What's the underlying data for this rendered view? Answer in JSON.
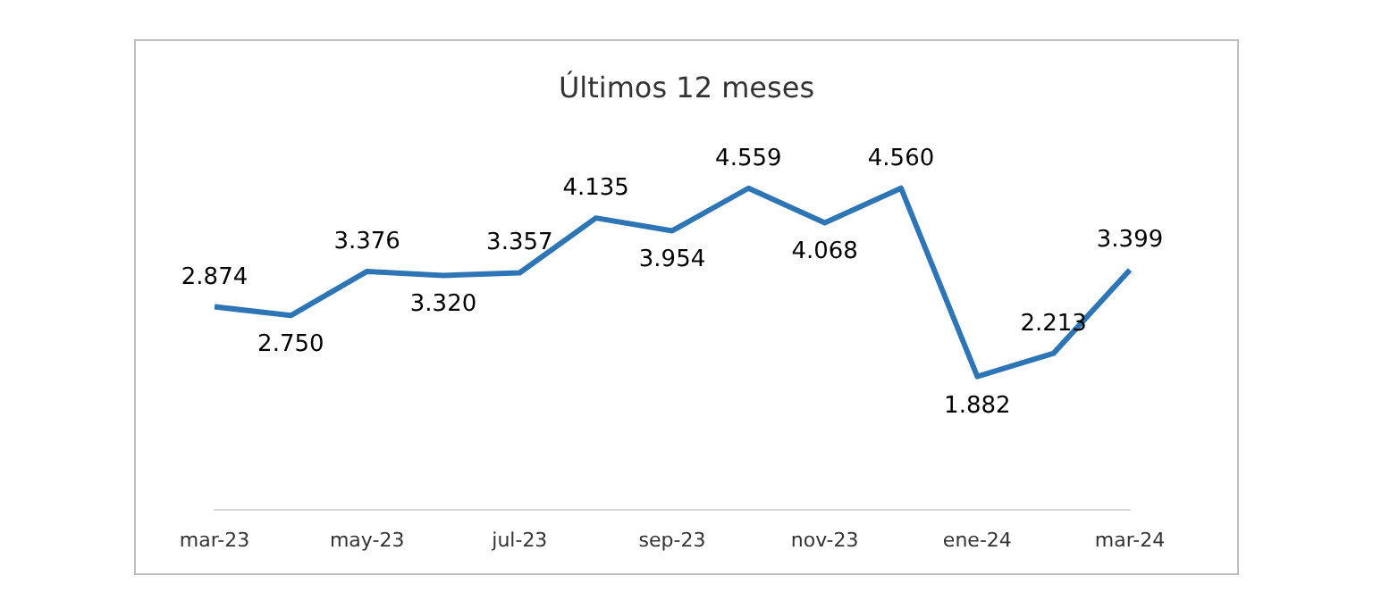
{
  "chart_data": {
    "type": "line",
    "title": "Últimos 12 meses",
    "categories": [
      "mar-23",
      null,
      "may-23",
      null,
      "jul-23",
      null,
      "sep-23",
      null,
      "nov-23",
      null,
      "ene-24",
      null,
      "mar-24"
    ],
    "series": [
      {
        "color": "#2e75b6",
        "values": [
          2874,
          2750,
          3376,
          3320,
          3357,
          4135,
          3954,
          4559,
          4068,
          4560,
          1882,
          2213,
          3399
        ],
        "value_labels": [
          "2.874",
          "2.750",
          "3.376",
          "3.320",
          "3.357",
          "4.135",
          "3.954",
          "4.559",
          "4.068",
          "4.560",
          "1.882",
          "2.213",
          "3.399"
        ]
      }
    ],
    "grid": false,
    "marker": "none",
    "line_style": "solid"
  }
}
